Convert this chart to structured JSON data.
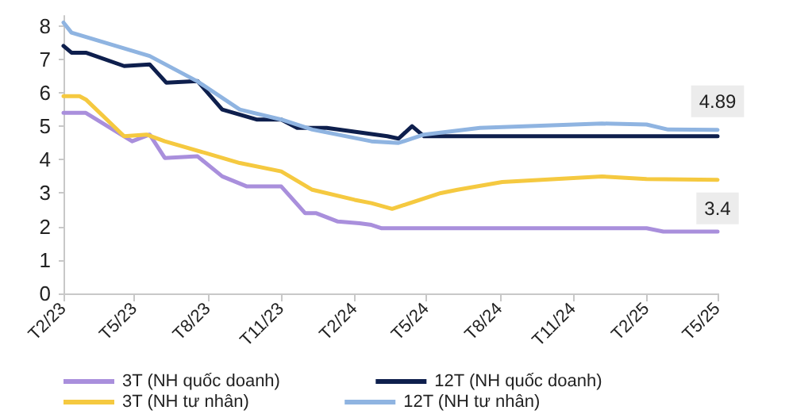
{
  "chart_data": {
    "type": "line",
    "xlim": [
      "2023-02",
      "2025-05"
    ],
    "xticks": [
      {
        "value": "2023-02",
        "label": "T2/23"
      },
      {
        "value": "2023-05",
        "label": "T5/23"
      },
      {
        "value": "2023-08",
        "label": "T8/23"
      },
      {
        "value": "2023-11",
        "label": "T11/23"
      },
      {
        "value": "2024-02",
        "label": "T2/24"
      },
      {
        "value": "2024-05",
        "label": "T5/24"
      },
      {
        "value": "2024-08",
        "label": "T8/24"
      },
      {
        "value": "2024-11",
        "label": "T11/24"
      },
      {
        "value": "2025-02",
        "label": "T2/25"
      },
      {
        "value": "2025-05",
        "label": "T5/25"
      }
    ],
    "ylim": [
      0,
      8.3
    ],
    "yticks": [
      0,
      1,
      2,
      3,
      4,
      5,
      6,
      7,
      8
    ],
    "grid": false,
    "legend": "bottom",
    "marker": "none",
    "line_style": "solid",
    "series": [
      {
        "name": "3T (NH quốc doanh)",
        "color": "#a98fdc",
        "x": [
          "2023-02-01",
          "2023-03-01",
          "2023-04-28",
          "2023-05-20",
          "2023-06-08",
          "2023-07-19",
          "2023-08-19",
          "2023-09-19",
          "2023-11-01",
          "2023-12-01",
          "2023-12-15",
          "2024-01-11",
          "2024-02-07",
          "2024-02-22",
          "2024-03-06",
          "2025-02-01",
          "2025-02-22",
          "2025-05-01"
        ],
        "values": [
          5.4,
          5.4,
          4.55,
          4.75,
          4.05,
          4.1,
          3.5,
          3.2,
          3.2,
          2.4,
          2.4,
          2.15,
          2.1,
          2.05,
          1.95,
          1.95,
          1.85,
          1.85
        ]
      },
      {
        "name": "12T (NH quốc doanh)",
        "color": "#0e1f4d",
        "x": [
          "2023-02-01",
          "2023-02-11",
          "2023-03-01",
          "2023-04-18",
          "2023-05-20",
          "2023-06-10",
          "2023-07-19",
          "2023-08-19",
          "2023-10-01",
          "2023-11-01",
          "2023-11-21",
          "2023-12-28",
          "2024-03-13",
          "2024-03-27",
          "2024-04-13",
          "2024-04-28",
          "2025-05-01"
        ],
        "values": [
          7.4,
          7.2,
          7.2,
          6.8,
          6.85,
          6.3,
          6.35,
          5.5,
          5.2,
          5.2,
          4.95,
          4.95,
          4.7,
          4.63,
          5.0,
          4.7,
          4.7
        ]
      },
      {
        "name": "3T (NH tư nhân)",
        "color": "#f5c940",
        "x": [
          "2023-02-01",
          "2023-02-21",
          "2023-03-01",
          "2023-04-18",
          "2023-05-16",
          "2023-06-08",
          "2023-07-29",
          "2023-09-10",
          "2023-11-01",
          "2023-12-10",
          "2024-02-01",
          "2024-02-22",
          "2024-03-19",
          "2024-05-19",
          "2024-06-09",
          "2024-08-04",
          "2024-12-07",
          "2025-02-01",
          "2025-05-01"
        ],
        "values": [
          5.9,
          5.9,
          5.8,
          4.7,
          4.75,
          4.55,
          4.2,
          3.9,
          3.65,
          3.1,
          2.8,
          2.7,
          2.53,
          3.0,
          3.1,
          3.33,
          3.5,
          3.42,
          3.4
        ],
        "value_labels": [
          null,
          null,
          null,
          null,
          null,
          null,
          null,
          null,
          null,
          null,
          null,
          null,
          null,
          null,
          null,
          null,
          null,
          null,
          "3.4"
        ]
      },
      {
        "name": "12T (NH tư nhân)",
        "color": "#8fb4e1",
        "x": [
          "2023-02-01",
          "2023-02-11",
          "2023-05-20",
          "2023-07-19",
          "2023-09-10",
          "2023-11-01",
          "2023-12-10",
          "2024-02-22",
          "2024-03-27",
          "2024-04-28",
          "2024-07-07",
          "2024-12-07",
          "2025-02-01",
          "2025-02-28",
          "2025-05-01"
        ],
        "values": [
          8.1,
          7.8,
          7.1,
          6.34,
          5.5,
          5.2,
          4.9,
          4.55,
          4.5,
          4.75,
          4.95,
          5.08,
          5.05,
          4.9,
          4.89
        ],
        "value_labels": [
          null,
          null,
          null,
          null,
          null,
          null,
          null,
          null,
          null,
          null,
          null,
          null,
          null,
          null,
          "4.89"
        ]
      }
    ]
  }
}
